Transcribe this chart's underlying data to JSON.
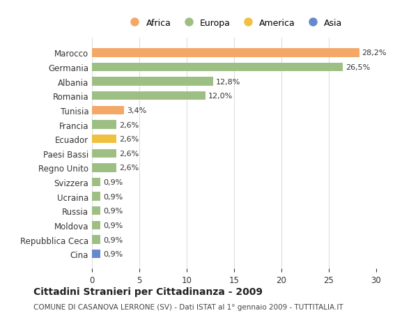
{
  "countries": [
    "Marocco",
    "Germania",
    "Albania",
    "Romania",
    "Tunisia",
    "Francia",
    "Ecuador",
    "Paesi Bassi",
    "Regno Unito",
    "Svizzera",
    "Ucraina",
    "Russia",
    "Moldova",
    "Repubblica Ceca",
    "Cina"
  ],
  "values": [
    28.2,
    26.5,
    12.8,
    12.0,
    3.4,
    2.6,
    2.6,
    2.6,
    2.6,
    0.9,
    0.9,
    0.9,
    0.9,
    0.9,
    0.9
  ],
  "labels": [
    "28,2%",
    "26,5%",
    "12,8%",
    "12,0%",
    "3,4%",
    "2,6%",
    "2,6%",
    "2,6%",
    "2,6%",
    "0,9%",
    "0,9%",
    "0,9%",
    "0,9%",
    "0,9%",
    "0,9%"
  ],
  "colors": [
    "#F4A868",
    "#9DBF84",
    "#9DBF84",
    "#9DBF84",
    "#F4A868",
    "#9DBF84",
    "#F0C040",
    "#9DBF84",
    "#9DBF84",
    "#9DBF84",
    "#9DBF84",
    "#9DBF84",
    "#9DBF84",
    "#9DBF84",
    "#6688CC"
  ],
  "legend_labels": [
    "Africa",
    "Europa",
    "America",
    "Asia"
  ],
  "legend_colors": [
    "#F4A868",
    "#9DBF84",
    "#F0C040",
    "#6688CC"
  ],
  "title": "Cittadini Stranieri per Cittadinanza - 2009",
  "subtitle": "COMUNE DI CASANOVA LERRONE (SV) - Dati ISTAT al 1° gennaio 2009 - TUTTITALIA.IT",
  "xlim": [
    0,
    30
  ],
  "xticks": [
    0,
    5,
    10,
    15,
    20,
    25,
    30
  ],
  "bg_color": "#FFFFFF",
  "grid_color": "#DDDDDD"
}
